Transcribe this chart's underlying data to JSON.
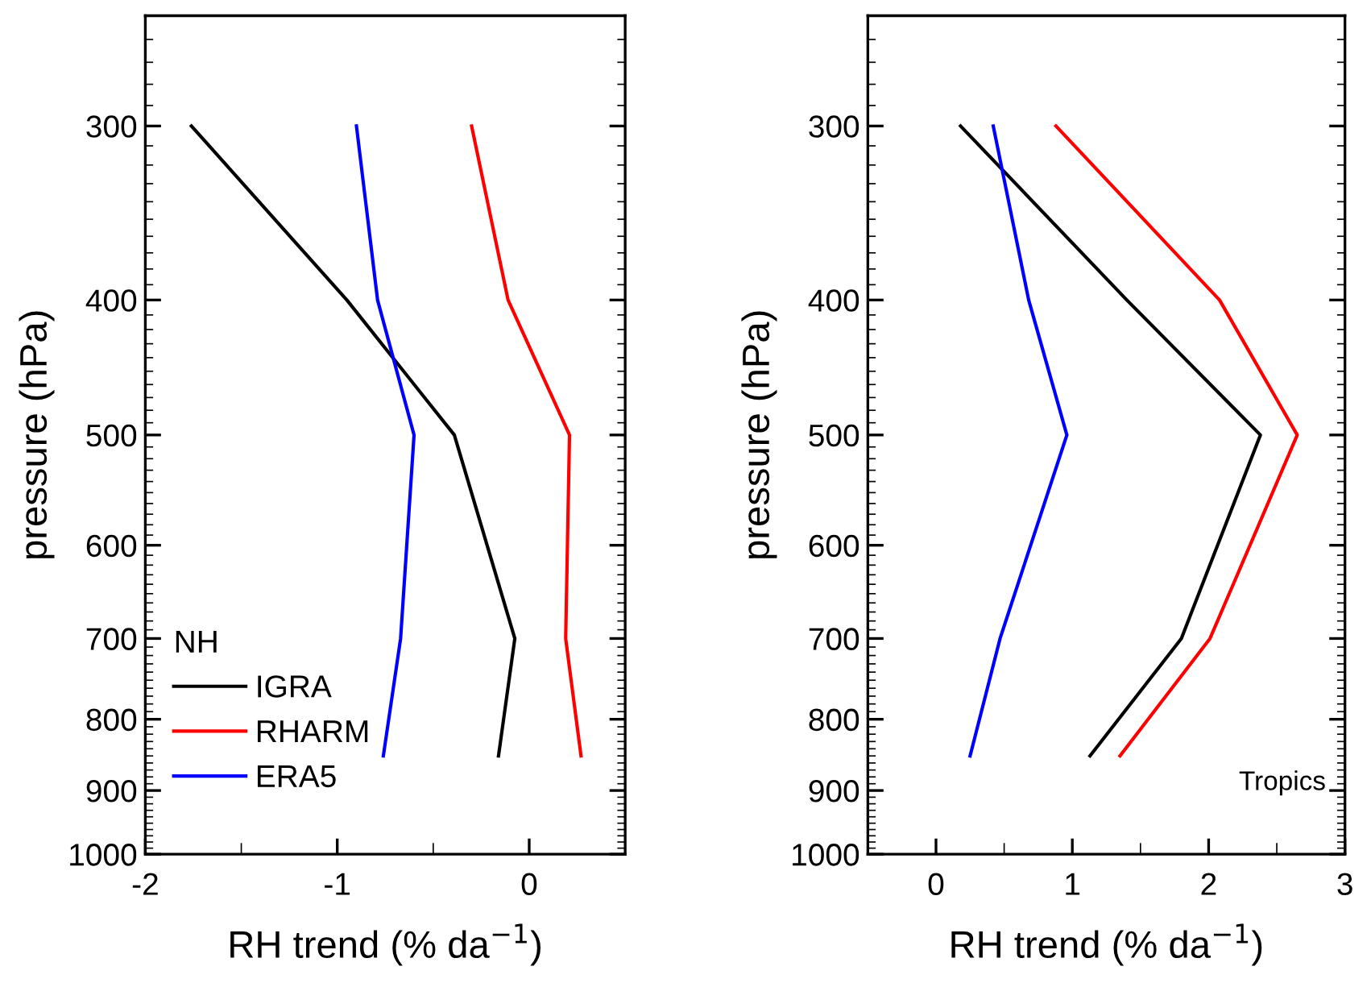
{
  "chart_data": [
    {
      "type": "line",
      "xlabel": "RH trend (% da$^{−1}$)",
      "ylabel": "pressure (hPa)",
      "legend_title": "NH",
      "legend": "bottom left",
      "log": "y",
      "grid": false,
      "xlim": [
        -2,
        0.5
      ],
      "xticks": [
        -2,
        -1,
        0
      ],
      "ylim": [
        1000,
        250
      ],
      "yticks": [
        300,
        400,
        500,
        600,
        700,
        800,
        900,
        1000
      ],
      "series": [
        {
          "name": "IGRA",
          "color": "#000000",
          "x": [
            -1.76,
            -0.95,
            -0.39,
            -0.075,
            -0.16
          ],
          "values": [
            300,
            400,
            500,
            700,
            850
          ]
        },
        {
          "name": "RHARM",
          "color": "#ff0000",
          "x": [
            -0.3,
            -0.11,
            0.21,
            0.19,
            0.27
          ],
          "values": [
            300,
            400,
            500,
            700,
            850
          ]
        },
        {
          "name": "ERA5",
          "color": "#0000ff",
          "x": [
            -0.9,
            -0.79,
            -0.6,
            -0.67,
            -0.76
          ],
          "values": [
            300,
            400,
            500,
            700,
            850
          ]
        }
      ]
    },
    {
      "type": "line",
      "xlabel": "RH trend (% da$^{−1}$)",
      "ylabel": "pressure (hPa)",
      "annotations": [
        "Tropics"
      ],
      "log": "y",
      "grid": false,
      "xlim": [
        -0.5,
        3
      ],
      "xticks": [
        0,
        1,
        2,
        3
      ],
      "ylim": [
        1000,
        250
      ],
      "yticks": [
        300,
        400,
        500,
        600,
        700,
        800,
        900,
        1000
      ],
      "series": [
        {
          "color": "#000000",
          "x": [
            0.18,
            1.4,
            2.38,
            1.8,
            1.13
          ],
          "values": [
            300,
            400,
            500,
            700,
            850
          ]
        },
        {
          "color": "#ff0000",
          "x": [
            0.88,
            2.08,
            2.65,
            2.01,
            1.35
          ],
          "values": [
            300,
            400,
            500,
            700,
            850
          ]
        },
        {
          "color": "#0000ff",
          "x": [
            0.42,
            0.68,
            0.96,
            0.47,
            0.25
          ],
          "values": [
            300,
            400,
            500,
            700,
            850
          ]
        }
      ]
    }
  ]
}
